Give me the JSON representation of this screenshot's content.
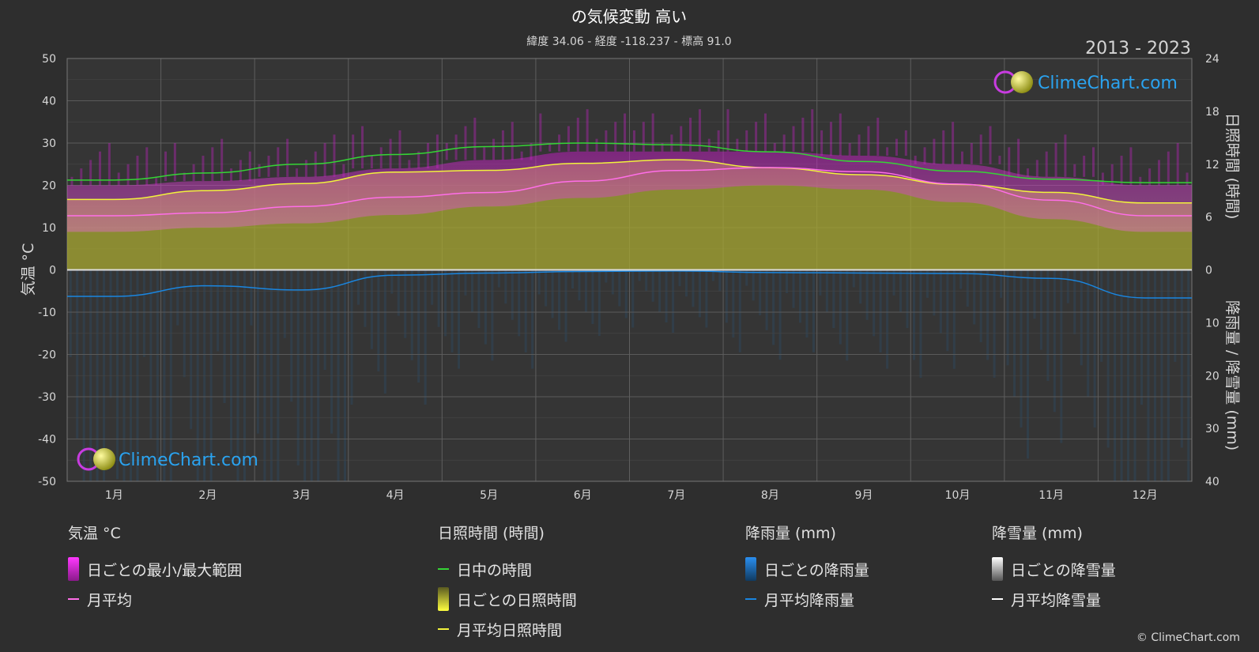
{
  "header": {
    "title": "の気候変動 高い",
    "subtitle": "緯度 34.06 - 経度 -118.237 - 標高 91.0",
    "years": "2013 - 2023"
  },
  "brand": {
    "name": "ClimeChart.com",
    "copyright": "© ClimeChart.com"
  },
  "colors": {
    "bg": "#2e2e2e",
    "temp_range": "#d21fd2",
    "temp_avg": "#ff6ee8",
    "daylight": "#35d435",
    "sunshine_fill": "#a8a832",
    "sunshine_avg": "#f2f23c",
    "rain": "#1a86e0",
    "snow": "#ffffff"
  },
  "chart_data": {
    "type": "line",
    "x": [
      "1月",
      "2月",
      "3月",
      "4月",
      "5月",
      "6月",
      "7月",
      "8月",
      "9月",
      "10月",
      "11月",
      "12月"
    ],
    "axes": {
      "left": {
        "label": "気温 °C",
        "range": [
          -50,
          50
        ],
        "ticks": [
          50,
          40,
          30,
          20,
          10,
          0,
          -10,
          -20,
          -30,
          -40,
          -50
        ]
      },
      "right_top": {
        "label": "日照時間 (時間)",
        "range": [
          0,
          24
        ],
        "ticks": [
          24,
          18,
          12,
          6,
          0
        ]
      },
      "right_bottom": {
        "label": "降雨量 / 降雪量 (mm)",
        "range": [
          0,
          40
        ],
        "ticks": [
          10,
          20,
          30,
          40
        ]
      }
    },
    "series": [
      {
        "name": "日中の時間",
        "axis": "sunshine_hours",
        "values": [
          10.2,
          11.0,
          12.0,
          13.1,
          14.0,
          14.4,
          14.2,
          13.4,
          12.3,
          11.2,
          10.3,
          9.9
        ]
      },
      {
        "name": "月平均日照時間",
        "axis": "sunshine_hours",
        "values": [
          8.0,
          9.0,
          9.8,
          11.1,
          11.3,
          12.1,
          12.5,
          11.6,
          10.8,
          9.7,
          8.8,
          7.6
        ]
      },
      {
        "name": "月平均",
        "axis": "temperature_c",
        "values": [
          12.8,
          13.5,
          15.0,
          17.2,
          18.3,
          21.0,
          23.5,
          24.2,
          23.2,
          20.3,
          16.5,
          12.8
        ]
      },
      {
        "name": "月平均降雨量",
        "axis": "precipitation_mm",
        "values": [
          5.0,
          3.0,
          3.8,
          1.0,
          0.6,
          0.3,
          0.2,
          0.5,
          0.6,
          0.7,
          1.6,
          5.3
        ]
      },
      {
        "name": "日ごとの最小/最大範囲",
        "axis": "temperature_c",
        "type": "range",
        "low": [
          9,
          10,
          11,
          13,
          15,
          17,
          19,
          20,
          19,
          16,
          12,
          9
        ],
        "high": [
          20,
          21,
          22,
          24,
          26,
          28,
          28,
          28,
          27,
          25,
          22,
          20
        ]
      }
    ]
  },
  "legend": {
    "temperature": {
      "title": "気温 °C",
      "items": [
        "日ごとの最小/最大範囲",
        "月平均"
      ]
    },
    "sunshine": {
      "title": "日照時間 (時間)",
      "items": [
        "日中の時間",
        "日ごとの日照時間",
        "月平均日照時間"
      ]
    },
    "rain": {
      "title": "降雨量 (mm)",
      "items": [
        "日ごとの降雨量",
        "月平均降雨量"
      ]
    },
    "snow": {
      "title": "降雪量 (mm)",
      "items": [
        "日ごとの降雪量",
        "月平均降雪量"
      ]
    }
  }
}
